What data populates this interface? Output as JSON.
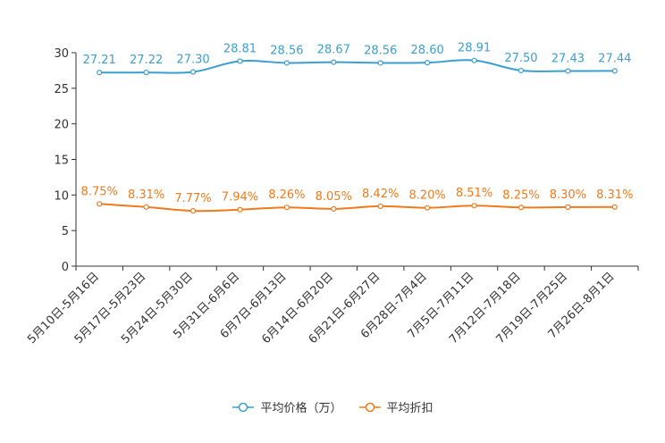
{
  "chart_data": {
    "type": "line",
    "categories": [
      "5月10日-5月16日",
      "5月17日-5月23日",
      "5月24日-5月30日",
      "5月31日-6月6日",
      "6月7日-6月13日",
      "6月14日-6月20日",
      "6月21日-6月27日",
      "6月28日-7月4日",
      "7月5日-7月11日",
      "7月12日-7月18日",
      "7月19日-7月25日",
      "7月26日-8月1日"
    ],
    "series": [
      {
        "name": "平均价格（万）",
        "color": "#3a9fd0",
        "values": [
          27.21,
          27.22,
          27.3,
          28.81,
          28.56,
          28.67,
          28.56,
          28.6,
          28.91,
          27.5,
          27.43,
          27.44
        ],
        "labels": [
          "27.21",
          "27.22",
          "27.30",
          "28.81",
          "28.56",
          "28.67",
          "28.56",
          "28.60",
          "28.91",
          "27.50",
          "27.43",
          "27.44"
        ]
      },
      {
        "name": "平均折扣",
        "color": "#f07a1c",
        "values": [
          8.75,
          8.31,
          7.77,
          7.94,
          8.26,
          8.05,
          8.42,
          8.2,
          8.51,
          8.25,
          8.3,
          8.31
        ],
        "labels": [
          "8.75%",
          "8.31%",
          "7.77%",
          "7.94%",
          "8.26%",
          "8.05%",
          "8.42%",
          "8.20%",
          "8.51%",
          "8.25%",
          "8.30%",
          "8.31%"
        ]
      }
    ],
    "ylim": [
      0,
      30
    ],
    "yticks": [
      0,
      5,
      10,
      15,
      20,
      25,
      30
    ],
    "title": "",
    "xlabel": "",
    "ylabel": "",
    "grid": false,
    "legend_position": "bottom-center"
  }
}
